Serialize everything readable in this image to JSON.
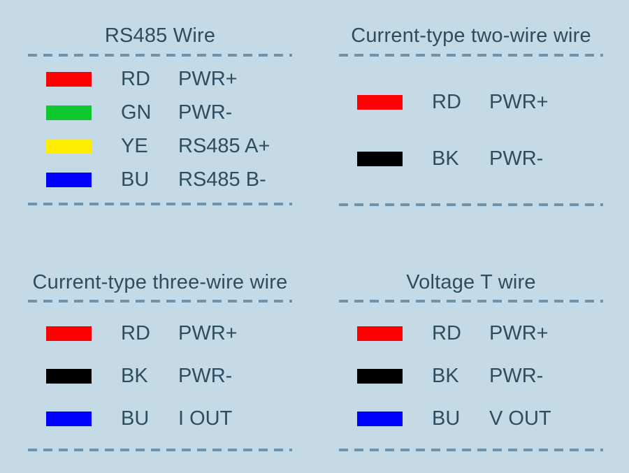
{
  "diagram": {
    "name": "sensor-wiring-color-legend"
  },
  "colors": {
    "background": "#C5DAE7",
    "text": "#2E4D5F",
    "dash": "#6E93AC",
    "swatch_red": "#FF0000",
    "swatch_green": "#0FC82F",
    "swatch_yellow": "#FFEE00",
    "swatch_blue": "#0000FF",
    "swatch_black": "#000000"
  },
  "panels": [
    {
      "title": "RS485 Wire",
      "rows": [
        {
          "color_name": "red",
          "color": "#FF0000",
          "code": "RD",
          "signal": "PWR+"
        },
        {
          "color_name": "green",
          "color": "#0FC82F",
          "code": "GN",
          "signal": "PWR-"
        },
        {
          "color_name": "yellow",
          "color": "#FFEE00",
          "code": "YE",
          "signal": "RS485 A+"
        },
        {
          "color_name": "blue",
          "color": "#0000FF",
          "code": "BU",
          "signal": "RS485 B-"
        }
      ]
    },
    {
      "title": "Current-type two-wire wire",
      "rows": [
        {
          "color_name": "red",
          "color": "#FF0000",
          "code": "RD",
          "signal": "PWR+"
        },
        {
          "color_name": "black",
          "color": "#000000",
          "code": "BK",
          "signal": "PWR-"
        }
      ]
    },
    {
      "title": "Current-type three-wire wire",
      "rows": [
        {
          "color_name": "red",
          "color": "#FF0000",
          "code": "RD",
          "signal": "PWR+"
        },
        {
          "color_name": "black",
          "color": "#000000",
          "code": "BK",
          "signal": "PWR-"
        },
        {
          "color_name": "blue",
          "color": "#0000FF",
          "code": "BU",
          "signal": "I OUT"
        }
      ]
    },
    {
      "title": "Voltage T wire",
      "rows": [
        {
          "color_name": "red",
          "color": "#FF0000",
          "code": "RD",
          "signal": "PWR+"
        },
        {
          "color_name": "black",
          "color": "#000000",
          "code": "BK",
          "signal": "PWR-"
        },
        {
          "color_name": "blue",
          "color": "#0000FF",
          "code": "BU",
          "signal": "V OUT"
        }
      ]
    }
  ]
}
